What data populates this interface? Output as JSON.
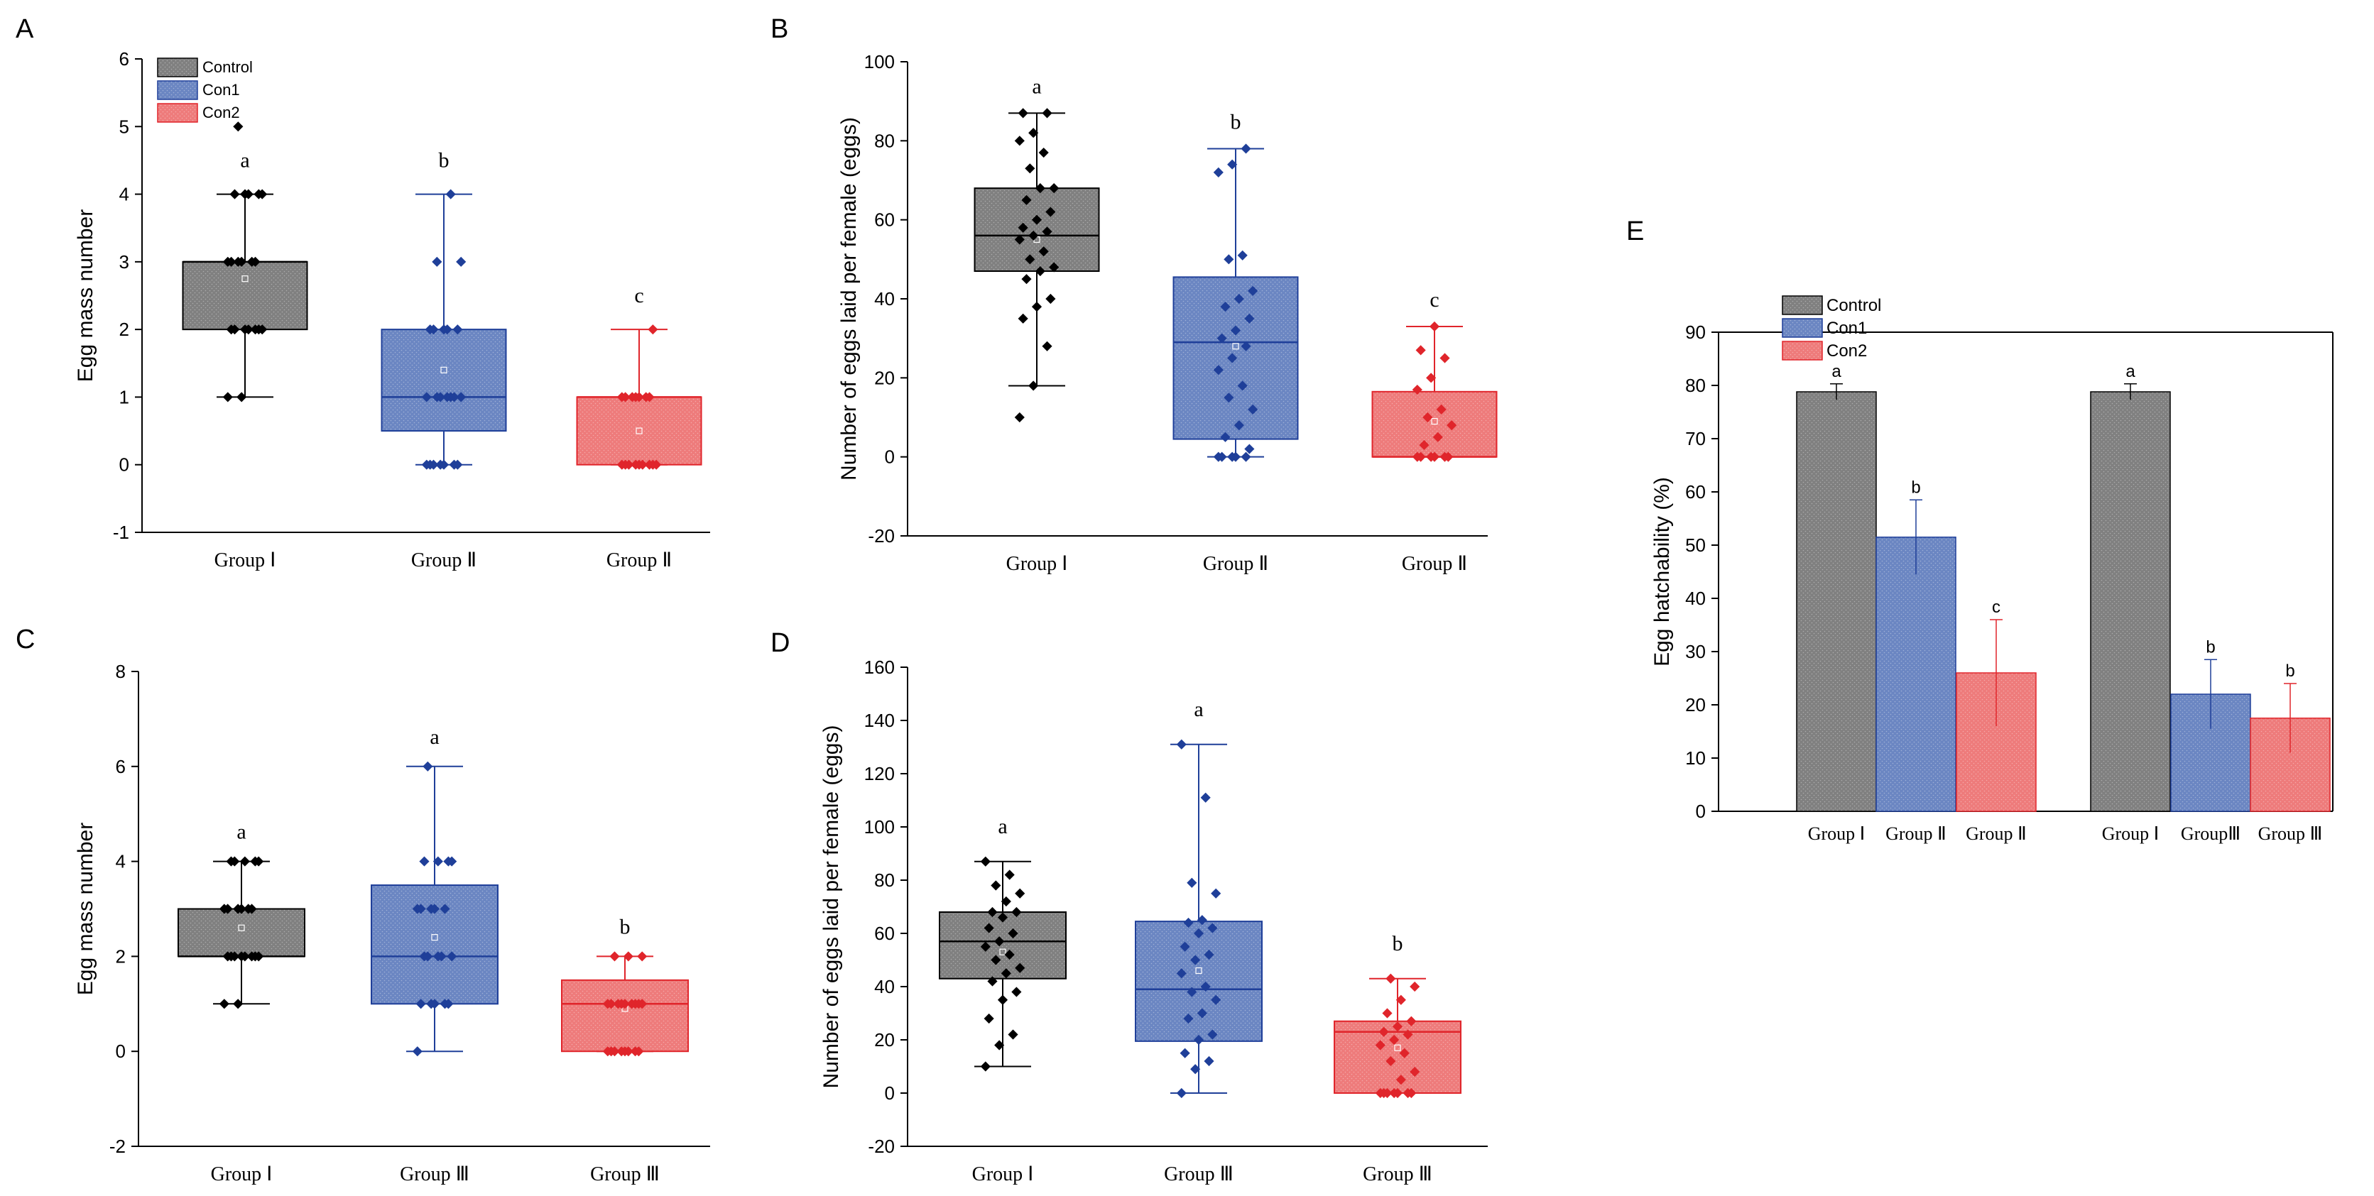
{
  "colors": {
    "control": "#808080",
    "con1": "#6b86c2",
    "con2": "#ee7b7b",
    "control_stroke": "#000000",
    "con1_stroke": "#1f3f99",
    "con2_stroke": "#e0252b",
    "point_control": "#000000",
    "point_con1": "#1f3f99",
    "point_con2": "#e0252b"
  },
  "legend": {
    "control": "Control",
    "con1": "Con1",
    "con2": "Con2"
  },
  "chart_data": [
    {
      "panel": "A",
      "type": "box",
      "title": "",
      "xlabel": "",
      "ylabel": "Egg mass number",
      "ylim": [
        -1,
        6
      ],
      "yticks": [
        -1,
        0,
        1,
        2,
        3,
        4,
        5,
        6
      ],
      "legend_position": "top-left",
      "categories": [
        "Group Ⅰ",
        "Group Ⅱ",
        "Group Ⅱ"
      ],
      "series": [
        {
          "name": "Control",
          "min": 1,
          "q1": 2,
          "median": 3,
          "q3": 3,
          "max": 4,
          "mean": 2.75,
          "letter": "a",
          "points": [
            1,
            1,
            2,
            2,
            2,
            2,
            2,
            2,
            2,
            3,
            3,
            3,
            3,
            3,
            3,
            4,
            4,
            4,
            4,
            4,
            5
          ]
        },
        {
          "name": "Con1",
          "min": 0,
          "q1": 0.5,
          "median": 1,
          "q3": 2,
          "max": 4,
          "mean": 1.4,
          "letter": "b",
          "points": [
            0,
            0,
            0,
            0,
            0,
            0,
            0,
            1,
            1,
            1,
            1,
            1,
            1,
            1,
            2,
            2,
            2,
            2,
            2,
            3,
            3,
            4
          ]
        },
        {
          "name": "Con2",
          "min": 0,
          "q1": 0,
          "median": 1,
          "q3": 1,
          "max": 2,
          "mean": 0.5,
          "letter": "c",
          "points": [
            0,
            0,
            0,
            0,
            0,
            0,
            0,
            0,
            0,
            1,
            1,
            1,
            1,
            1,
            1,
            1,
            2
          ]
        }
      ]
    },
    {
      "panel": "B",
      "type": "box",
      "title": "",
      "xlabel": "",
      "ylabel": "Number of eggs laid per female (eggs)",
      "ylim": [
        -20,
        100
      ],
      "yticks": [
        -20,
        0,
        20,
        40,
        60,
        80,
        100
      ],
      "categories": [
        "Group Ⅰ",
        "Group Ⅱ",
        "Group Ⅱ"
      ],
      "series": [
        {
          "name": "Control",
          "min": 18,
          "q1": 47,
          "median": 56,
          "q3": 68,
          "max": 87,
          "mean": 55,
          "letter": "a",
          "points": [
            10,
            18,
            28,
            35,
            38,
            40,
            45,
            47,
            48,
            50,
            52,
            55,
            56,
            57,
            58,
            60,
            62,
            65,
            68,
            68,
            73,
            77,
            80,
            82,
            87,
            87
          ]
        },
        {
          "name": "Con1",
          "min": 0,
          "q1": 4.5,
          "median": 29,
          "q3": 45.5,
          "max": 78,
          "mean": 28,
          "letter": "b",
          "points": [
            0,
            0,
            0,
            0,
            0,
            2,
            5,
            8,
            12,
            15,
            18,
            22,
            25,
            28,
            30,
            32,
            35,
            38,
            40,
            42,
            50,
            51,
            72,
            74,
            78
          ]
        },
        {
          "name": "Con2",
          "min": 0,
          "q1": 0,
          "median": 0,
          "q3": 16.5,
          "max": 33,
          "mean": 9,
          "letter": "c",
          "points": [
            0,
            0,
            0,
            0,
            0,
            0,
            3,
            5,
            8,
            10,
            12,
            17,
            20,
            25,
            27,
            33
          ]
        }
      ]
    },
    {
      "panel": "C",
      "type": "box",
      "title": "",
      "xlabel": "",
      "ylabel": "Egg mass number",
      "ylim": [
        -2,
        8
      ],
      "yticks": [
        -2,
        0,
        2,
        4,
        6,
        8
      ],
      "categories": [
        "Group Ⅰ",
        "Group Ⅲ",
        "Group Ⅲ"
      ],
      "series": [
        {
          "name": "Control",
          "min": 1,
          "q1": 2,
          "median": 2,
          "q3": 3,
          "max": 4,
          "mean": 2.6,
          "letter": "a",
          "points": [
            1,
            1,
            2,
            2,
            2,
            2,
            2,
            2,
            2,
            2,
            3,
            3,
            3,
            3,
            3,
            3,
            4,
            4,
            4,
            4,
            4
          ]
        },
        {
          "name": "Con1",
          "min": 0,
          "q1": 1,
          "median": 2,
          "q3": 3.5,
          "max": 6,
          "mean": 2.4,
          "letter": "a",
          "points": [
            0,
            1,
            1,
            1,
            1,
            1,
            2,
            2,
            2,
            2,
            2,
            3,
            3,
            3,
            3,
            3,
            4,
            4,
            4,
            4,
            6
          ]
        },
        {
          "name": "Con2",
          "min": 0,
          "q1": 0,
          "median": 1,
          "q3": 1.5,
          "max": 2,
          "mean": 0.9,
          "letter": "b",
          "points": [
            0,
            0,
            0,
            0,
            0,
            0,
            0,
            0,
            1,
            1,
            1,
            1,
            1,
            1,
            1,
            1,
            1,
            2,
            2,
            2
          ]
        }
      ]
    },
    {
      "panel": "D",
      "type": "box",
      "title": "",
      "xlabel": "",
      "ylabel": "Number of eggs laid per female (eggs)",
      "ylim": [
        -20,
        160
      ],
      "yticks": [
        -20,
        0,
        20,
        40,
        60,
        80,
        100,
        120,
        140,
        160
      ],
      "categories": [
        "Group Ⅰ",
        "Group Ⅲ",
        "Group Ⅲ"
      ],
      "series": [
        {
          "name": "Control",
          "min": 10,
          "q1": 43,
          "median": 57,
          "q3": 68,
          "max": 87,
          "mean": 53,
          "letter": "a",
          "points": [
            10,
            18,
            22,
            28,
            35,
            38,
            42,
            45,
            47,
            50,
            52,
            55,
            57,
            60,
            62,
            66,
            68,
            68,
            72,
            75,
            78,
            82,
            87
          ]
        },
        {
          "name": "Con1",
          "min": 0,
          "q1": 19.5,
          "median": 39,
          "q3": 64.5,
          "max": 131,
          "mean": 46,
          "letter": "a",
          "points": [
            0,
            9,
            12,
            15,
            20,
            22,
            28,
            30,
            35,
            38,
            40,
            45,
            50,
            52,
            55,
            60,
            62,
            64,
            65,
            75,
            79,
            111,
            131
          ]
        },
        {
          "name": "Con2",
          "min": 0,
          "q1": 0,
          "median": 23,
          "q3": 27,
          "max": 43,
          "mean": 17,
          "letter": "b",
          "points": [
            0,
            0,
            0,
            0,
            0,
            0,
            0,
            5,
            8,
            12,
            15,
            18,
            20,
            22,
            23,
            25,
            27,
            30,
            35,
            40,
            43
          ]
        }
      ]
    },
    {
      "panel": "E",
      "type": "bar",
      "title": "",
      "xlabel": "",
      "ylabel": "Egg hatchability (%)",
      "ylim": [
        0,
        90
      ],
      "yticks": [
        0,
        10,
        20,
        30,
        40,
        50,
        60,
        70,
        80,
        90
      ],
      "legend_position": "top-left",
      "categories": [
        "Group Ⅰ",
        "Group Ⅱ",
        "Group Ⅱ",
        "Group Ⅰ",
        "GroupⅢ",
        "Group Ⅲ"
      ],
      "bars": [
        {
          "series": "Control",
          "value": 78.8,
          "err": 1.5,
          "letter": "a"
        },
        {
          "series": "Con1",
          "value": 51.5,
          "err": 7.0,
          "letter": "b"
        },
        {
          "series": "Con2",
          "value": 26.0,
          "err": 10.0,
          "letter": "c"
        },
        {
          "series": "Control",
          "value": 78.8,
          "err": 1.5,
          "letter": "a"
        },
        {
          "series": "Con1",
          "value": 22.0,
          "err": 6.5,
          "letter": "b"
        },
        {
          "series": "Con2",
          "value": 17.5,
          "err": 6.5,
          "letter": "b"
        }
      ]
    }
  ]
}
